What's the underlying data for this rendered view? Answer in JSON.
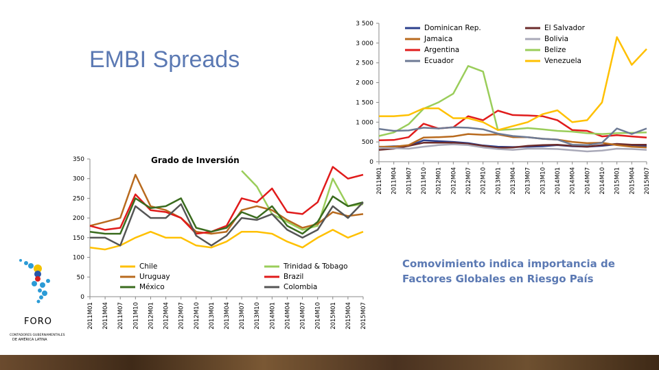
{
  "slide": {
    "title": "EMBI Spreads",
    "note": "Comovimiento indica importancia de Factores Globales en Riesgo País",
    "logo_text": "FORO",
    "logo_subtext_1": "CONTADORES GUBERNAMENTALES",
    "logo_subtext_2": "DE AMÉRICA LATINA"
  },
  "chart_data": [
    {
      "type": "line",
      "title": "",
      "xlabel": "",
      "ylabel": "",
      "ylim": [
        0,
        3500
      ],
      "yticks": [
        0,
        500,
        1000,
        1500,
        2000,
        2500,
        3000,
        3500
      ],
      "ytick_labels": [
        "0",
        "500",
        "1 000",
        "1 500",
        "2 000",
        "2 500",
        "3 000",
        "3 500"
      ],
      "x": [
        "2011M01",
        "2011M04",
        "2011M07",
        "2011M10",
        "2012M01",
        "2012M04",
        "2012M07",
        "2012M10",
        "2013M01",
        "2013M04",
        "2013M07",
        "2013M10",
        "2014M01",
        "2014M04",
        "2014M07",
        "2014M10",
        "2015M01",
        "2015M04",
        "2015M07"
      ],
      "xtick_labels": [
        "2011M01",
        "2011M04",
        "2011M07",
        "2011M10",
        "2012M01",
        "2012M04",
        "2012M07",
        "2012M10",
        "2013M01",
        "2013M04",
        "2013M07",
        "2013M10",
        "2014M01",
        "2014M04",
        "2014M07",
        "2014M10",
        "2015M01",
        "2015M04",
        "2015M07"
      ],
      "legend_position": "top",
      "grid": false,
      "series": [
        {
          "name": "Dominican Rep.",
          "color": "#2b3f8c",
          "values": [
            370,
            390,
            400,
            540,
            520,
            500,
            470,
            410,
            380,
            370,
            380,
            390,
            420,
            390,
            380,
            400,
            440,
            420,
            390
          ]
        },
        {
          "name": "El Salvador",
          "color": "#6b2b2b",
          "values": [
            300,
            330,
            400,
            480,
            480,
            480,
            450,
            400,
            350,
            360,
            400,
            420,
            430,
            400,
            380,
            420,
            450,
            430,
            430
          ]
        },
        {
          "name": "Jamaica",
          "color": "#b86a1e",
          "values": [
            380,
            380,
            420,
            610,
            620,
            640,
            700,
            680,
            690,
            620,
            620,
            580,
            560,
            500,
            470,
            480,
            420,
            380,
            360
          ]
        },
        {
          "name": "Bolivia",
          "color": "#a9a9b8",
          "values": [
            350,
            340,
            330,
            380,
            420,
            440,
            420,
            360,
            320,
            300,
            330,
            330,
            320,
            290,
            260,
            280,
            330,
            320,
            300
          ]
        },
        {
          "name": "Argentina",
          "color": "#e01b1b",
          "values": [
            540,
            550,
            620,
            960,
            840,
            870,
            1150,
            1050,
            1290,
            1180,
            1170,
            1150,
            1050,
            800,
            780,
            640,
            670,
            640,
            610
          ]
        },
        {
          "name": "Belize",
          "color": "#9acd5a",
          "values": [
            650,
            740,
            950,
            1340,
            1500,
            1720,
            2420,
            2280,
            800,
            820,
            850,
            820,
            780,
            760,
            720,
            700,
            720,
            730,
            740
          ]
        },
        {
          "name": "Ecuador",
          "color": "#6d7a94",
          "values": [
            830,
            780,
            790,
            860,
            840,
            870,
            860,
            820,
            710,
            650,
            620,
            580,
            560,
            430,
            420,
            480,
            840,
            700,
            840
          ]
        },
        {
          "name": "Venezuela",
          "color": "#ffc000",
          "values": [
            1150,
            1150,
            1180,
            1350,
            1350,
            1100,
            1100,
            1000,
            800,
            900,
            1000,
            1200,
            1300,
            1000,
            1050,
            1500,
            3150,
            2450,
            2850
          ]
        }
      ]
    },
    {
      "type": "line",
      "title": "Grado de Inversión",
      "xlabel": "",
      "ylabel": "",
      "ylim": [
        0,
        350
      ],
      "yticks": [
        0,
        50,
        100,
        150,
        200,
        250,
        300,
        350
      ],
      "ytick_labels": [
        "0",
        "50",
        "100",
        "150",
        "200",
        "250",
        "300",
        "350"
      ],
      "x": [
        "2011M01",
        "2011M04",
        "2011M07",
        "2011M10",
        "2012M01",
        "2012M04",
        "2012M07",
        "2012M10",
        "2013M01",
        "2013M04",
        "2013M07",
        "2013M10",
        "2014M01",
        "2014M04",
        "2014M07",
        "2014M10",
        "2015M01",
        "2015M04",
        "2015M07"
      ],
      "xtick_labels": [
        "2011M01",
        "2011M04",
        "2011M07",
        "2011M10",
        "2012M01",
        "2012M04",
        "2012M07",
        "2012M10",
        "2013M01",
        "2013M04",
        "2013M07",
        "2013M10",
        "2014M01",
        "2014M04",
        "2014M07",
        "2014M10",
        "2015M01",
        "2015M04",
        "2015M07"
      ],
      "legend_position": "bottom",
      "grid": false,
      "series": [
        {
          "name": "Chile",
          "color": "#ffc000",
          "values": [
            125,
            120,
            130,
            150,
            165,
            150,
            150,
            130,
            125,
            140,
            165,
            165,
            160,
            140,
            125,
            150,
            170,
            150,
            165
          ]
        },
        {
          "name": "Trinidad & Tobago",
          "color": "#9acd5a",
          "values": [
            null,
            null,
            null,
            null,
            null,
            null,
            null,
            null,
            null,
            null,
            320,
            280,
            210,
            190,
            170,
            180,
            300,
            230,
            235
          ]
        },
        {
          "name": "Uruguay",
          "color": "#b86a1e",
          "values": [
            180,
            190,
            200,
            310,
            230,
            220,
            200,
            165,
            160,
            165,
            220,
            230,
            220,
            195,
            175,
            185,
            215,
            205,
            210
          ]
        },
        {
          "name": "Brazil",
          "color": "#e01b1b",
          "values": [
            180,
            170,
            175,
            260,
            220,
            215,
            200,
            160,
            165,
            180,
            250,
            240,
            275,
            215,
            210,
            240,
            330,
            300,
            310
          ]
        },
        {
          "name": "México",
          "color": "#3a6b1e",
          "values": [
            165,
            160,
            160,
            250,
            225,
            230,
            250,
            175,
            165,
            175,
            215,
            200,
            230,
            180,
            160,
            190,
            255,
            230,
            240
          ]
        },
        {
          "name": "Colombia",
          "color": "#555555",
          "values": [
            150,
            150,
            130,
            230,
            200,
            200,
            235,
            155,
            130,
            155,
            200,
            195,
            210,
            170,
            150,
            170,
            230,
            200,
            240
          ]
        }
      ]
    }
  ]
}
